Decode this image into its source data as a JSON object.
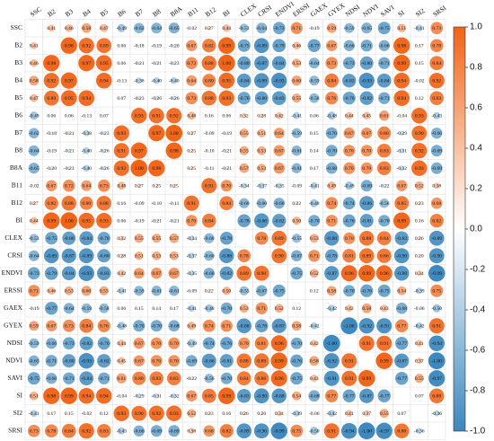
{
  "chart_data": {
    "type": "heatmap",
    "variables": [
      "SSC",
      "B2",
      "B3",
      "B4",
      "B5",
      "B6",
      "B7",
      "B8",
      "B8A",
      "B11",
      "B12",
      "BI",
      "CLEX",
      "CRSI",
      "ENDVI",
      "ERSSI",
      "GAEX",
      "GYEX",
      "NDSI",
      "NDVI",
      "SAVI",
      "SI",
      "SI2",
      "SRSI"
    ],
    "matrix": [
      [],
      [
        0.41
      ],
      [
        0.46,
        0.98
      ],
      [
        0.58,
        0.92,
        0.97
      ],
      [
        0.47,
        0.89,
        0.95,
        0.94
      ],
      [
        -0.49,
        0.06,
        0.06,
        -0.13,
        0.07
      ],
      [
        -0.62,
        -0.18,
        -0.21,
        -0.38,
        -0.23,
        0.93
      ],
      [
        -0.64,
        -0.19,
        -0.21,
        -0.4,
        -0.26,
        0.91,
        0.97
      ],
      [
        -0.65,
        -0.2,
        -0.23,
        -0.4,
        -0.26,
        0.92,
        1.0,
        0.98
      ],
      [
        -0.02,
        0.67,
        0.72,
        0.64,
        0.73,
        0.48,
        0.27,
        0.25,
        0.25
      ],
      [
        0.27,
        0.82,
        0.88,
        0.8,
        0.88,
        0.16,
        -0.09,
        -0.1,
        -0.11,
        0.91
      ],
      [
        0.44,
        0.99,
        1.0,
        0.95,
        0.93,
        0.06,
        -0.19,
        -0.21,
        -0.21,
        0.7,
        0.84
      ],
      [
        -0.53,
        -0.75,
        -0.8,
        -0.84,
        -0.76,
        0.32,
        0.55,
        0.55,
        0.57,
        -0.34,
        -0.6,
        -0.78
      ],
      [
        -0.64,
        -0.89,
        -0.87,
        -0.89,
        -0.8,
        0.28,
        0.51,
        0.53,
        0.53,
        -0.37,
        -0.6,
        -0.88,
        0.78
      ],
      [
        -0.73,
        -0.79,
        -0.84,
        -0.93,
        -0.83,
        0.42,
        0.64,
        0.67,
        0.67,
        -0.35,
        -0.66,
        -0.82,
        0.89,
        0.9
      ],
      [
        0.71,
        0.46,
        0.53,
        0.6,
        0.55,
        -0.41,
        -0.59,
        -0.61,
        -0.61,
        -0.09,
        0.22,
        0.5,
        -0.55,
        -0.67,
        -0.75
      ],
      [
        -0.19,
        -0.77,
        -0.64,
        -0.59,
        -0.58,
        0.06,
        0.15,
        0.14,
        0.17,
        -0.41,
        -0.48,
        -0.7,
        0.53,
        0.71,
        0.52,
        0.12
      ],
      [
        0.59,
        0.67,
        0.73,
        0.84,
        0.76,
        -0.48,
        -0.7,
        -0.7,
        -0.68,
        0.49,
        0.74,
        0.71,
        -0.88,
        -0.78,
        -0.87,
        0.58,
        -0.42
      ],
      [
        -0.59,
        -0.66,
        -0.73,
        -0.82,
        -0.76,
        0.44,
        0.67,
        0.7,
        0.7,
        -0.49,
        -0.74,
        -0.76,
        0.7,
        0.81,
        0.96,
        -0.7,
        0.42,
        -1.0
      ],
      [
        -0.65,
        -0.71,
        -0.8,
        -0.93,
        -0.82,
        0.45,
        0.67,
        0.7,
        0.7,
        -0.69,
        -0.86,
        -0.81,
        0.88,
        0.89,
        0.99,
        -0.76,
        0.58,
        -0.92,
        0.91
      ],
      [
        -0.75,
        -0.66,
        -0.71,
        -0.84,
        -0.71,
        0.61,
        0.8,
        0.83,
        0.83,
        -0.22,
        -0.56,
        -0.7,
        0.84,
        0.86,
        0.96,
        -0.75,
        0.43,
        -0.91,
        0.91,
        0.99
      ],
      [
        0.51,
        0.98,
        0.99,
        0.94,
        0.94,
        -0.04,
        -0.29,
        -0.31,
        -0.32,
        0.67,
        0.85,
        0.99,
        -0.83,
        -0.9,
        -0.88,
        0.54,
        -0.68,
        0.77,
        -0.77,
        -0.87,
        -0.77
      ],
      [
        -0.41,
        0.17,
        0.15,
        -0.02,
        0.12,
        0.93,
        0.9,
        0.92,
        0.93,
        0.52,
        0.23,
        0.16,
        0.26,
        0.2,
        0.34,
        -0.39,
        -0.06,
        -0.42,
        0.41,
        0.37,
        0.55,
        0.07
      ],
      [
        0.73,
        0.78,
        0.84,
        0.92,
        0.83,
        -0.43,
        -0.66,
        -0.69,
        -0.69,
        0.38,
        0.68,
        0.82,
        -0.89,
        -0.9,
        -0.99,
        0.75,
        -0.5,
        0.91,
        -0.94,
        -1.0,
        -0.97,
        0.88,
        -0.36
      ]
    ],
    "value_labels": [
      [],
      [
        "0.41"
      ],
      [
        "0.46",
        "0.98"
      ],
      [
        "0.58",
        "0.92",
        "0.97"
      ],
      [
        "0.47",
        "0.89",
        "0.95",
        "0.94"
      ],
      [
        "-0.49",
        "0.06",
        "0.06",
        "-0.13",
        "0.07"
      ],
      [
        "-0.62",
        "-0.18",
        "-0.21",
        "-0.38",
        "-0.23",
        "0.93"
      ],
      [
        "-0.64",
        "-0.19",
        "-0.21",
        "-0.40",
        "-0.26",
        "0.91",
        "0.97"
      ],
      [
        "-0.65",
        "-0.20",
        "-0.23",
        "-0.40",
        "-0.26",
        "0.92",
        "1.00",
        "0.98"
      ],
      [
        "-0.02",
        "0.67",
        "0.72",
        "0.64",
        "0.73",
        "0.48",
        "0.27",
        "0.25",
        "0.25"
      ],
      [
        "0.27",
        "0.82",
        "0.88",
        "0.80",
        "0.88",
        "0.16",
        "-0.09",
        "-0.10",
        "-0.11",
        "0.91"
      ],
      [
        "0.44",
        "0.99",
        "1.00",
        "0.95",
        "0.93",
        "0.06",
        "-0.19",
        "-0.21",
        "-0.21",
        "0.70",
        "0.84"
      ],
      [
        "-0.53",
        "-0.75",
        "-0.80",
        "-0.84",
        "-0.76",
        "0.32",
        "0.55",
        "0.55",
        "0.57",
        "-0.34",
        "-0.60",
        "-0.78"
      ],
      [
        "-0.64",
        "-0.89",
        "-0.87",
        "-0.89",
        "-0.80",
        "0.28",
        "0.51",
        "0.53",
        "0.53",
        "-0.37",
        "-0.60",
        "-0.88",
        "0.78"
      ],
      [
        "-0.73",
        "-0.79",
        "-0.84",
        "-0.93",
        "-0.83",
        "0.42",
        "0.64",
        "0.67",
        "0.67",
        "-0.35",
        "-0.66",
        "-0.82",
        "0.89",
        "0.90"
      ],
      [
        "0.71",
        "0.46",
        "0.53",
        "0.60",
        "0.55",
        "-0.41",
        "-0.59",
        "-0.61",
        "-0.61",
        "-0.09",
        "0.22",
        "0.50",
        "-0.55",
        "-0.67",
        "-0.75"
      ],
      [
        "-0.19",
        "-0.77",
        "-0.64",
        "-0.59",
        "-0.58",
        "0.06",
        "0.15",
        "0.14",
        "0.17",
        "-0.41",
        "-0.48",
        "-0.70",
        "0.53",
        "0.71",
        "0.52",
        "0.12"
      ],
      [
        "0.59",
        "0.67",
        "0.73",
        "0.84",
        "0.76",
        "-0.48",
        "-0.70",
        "-0.70",
        "-0.68",
        "0.49",
        "0.74",
        "0.71",
        "-0.88",
        "-0.78",
        "-0.87",
        "0.58",
        "-0.42"
      ],
      [
        "-0.59",
        "-0.66",
        "-0.73",
        "-0.82",
        "-0.76",
        "0.44",
        "0.67",
        "0.70",
        "0.70",
        "-0.49",
        "-0.74",
        "-0.76",
        "0.70",
        "0.81",
        "0.96",
        "-0.70",
        "0.42",
        "-1.00"
      ],
      [
        "-0.65",
        "-0.71",
        "-0.80",
        "-0.93",
        "-0.82",
        "0.45",
        "0.67",
        "0.70",
        "0.70",
        "-0.69",
        "-0.86",
        "-0.81",
        "0.88",
        "0.89",
        "0.99",
        "-0.76",
        "0.58",
        "-0.92",
        "0.91"
      ],
      [
        "-0.75",
        "-0.66",
        "-0.71",
        "-0.84",
        "-0.71",
        "0.61",
        "0.80",
        "0.83",
        "0.83",
        "-0.22",
        "-0.56",
        "-0.70",
        "0.84",
        "0.86",
        "0.96",
        "-0.75",
        "0.43",
        "-0.91",
        "0.91",
        "0.99"
      ],
      [
        "0.51",
        "0.98",
        "0.99",
        "0.94",
        "0.94",
        "-0.04",
        "-0.29",
        "-0.31",
        "-0.32",
        "0.67",
        "0.85",
        "0.99",
        "-0.83",
        "-0.90",
        "-0.88",
        "0.54",
        "-0.68",
        "0.77",
        "-0.77",
        "-0.87",
        "-0.77"
      ],
      [
        "-0.41",
        "0.17",
        "0.15",
        "-0.02",
        "0.12",
        "0.93",
        "0.90",
        "0.92",
        "0.93",
        "0.52",
        "0.23",
        "0.16",
        "0.26",
        "0.20",
        "0.34",
        "-0.39",
        "-0.06",
        "-0.42",
        "0.41",
        "0.37",
        "0.55",
        "0.07"
      ],
      [
        "0.73",
        "0.78",
        "0.84",
        "0.92",
        "0.83",
        "-0.43",
        "-0.66",
        "-0.69",
        "-0.69",
        "0.38",
        "0.68",
        "0.82",
        "-0.89",
        "-0.90",
        "-0.99",
        "0.75",
        "-0.50",
        "0.91",
        "-0.94",
        "-1.00",
        "-0.97",
        "0.88",
        "-0.36"
      ]
    ],
    "zlim": [
      -1,
      1
    ],
    "colorscale": [
      "#3d88bd",
      "#ffffff",
      "#f06418"
    ],
    "zticks": [
      {
        "value": 1,
        "label": "1.0"
      },
      0.8,
      0.6,
      0.4,
      0.2,
      {
        "value": 0,
        "label": "0.0"
      },
      -0.2,
      -0.4,
      -0.6,
      -0.8,
      {
        "value": -1,
        "label": "-1.0"
      }
    ]
  }
}
